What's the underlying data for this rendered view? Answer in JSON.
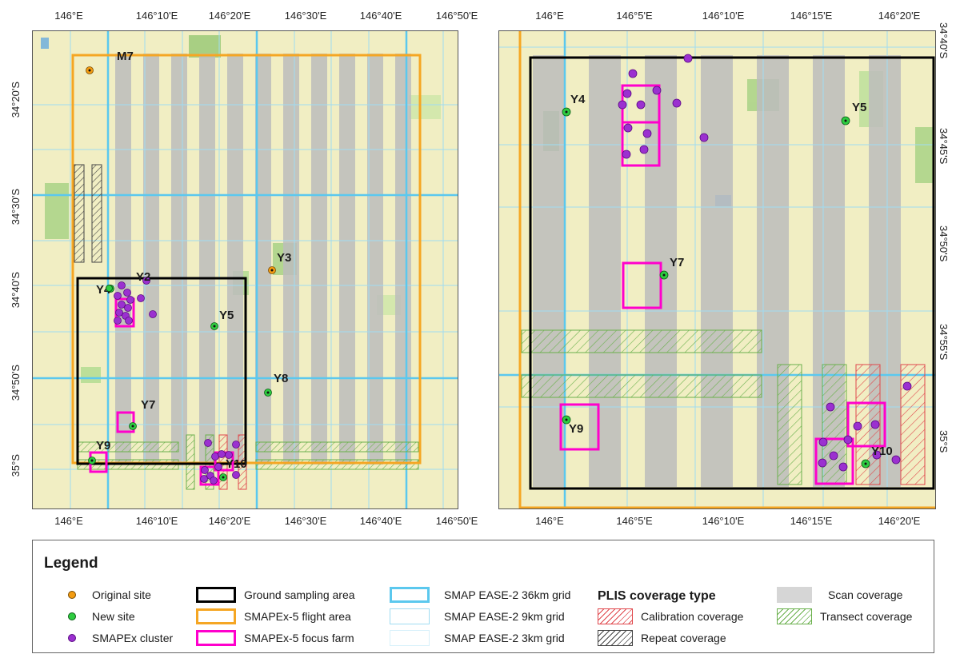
{
  "left_map": {
    "top_ticks": [
      "146°E",
      "146°10'E",
      "146°20'E",
      "146°30'E",
      "146°40'E",
      "146°50'E"
    ],
    "bottom_ticks": [
      "146°E",
      "146°10'E",
      "146°20'E",
      "146°30'E",
      "146°40'E",
      "146°50'E"
    ],
    "left_ticks": [
      "34°20'S",
      "34°30'S",
      "34°40'S",
      "34°50'S",
      "35°S"
    ],
    "sites": {
      "M7": "M7",
      "Y3": "Y3",
      "Y2": "Y2",
      "Y4": "Y4",
      "Y5": "Y5",
      "Y7": "Y7",
      "Y8": "Y8",
      "Y9": "Y9",
      "Y10": "Y10"
    }
  },
  "right_map": {
    "top_ticks": [
      "146°E",
      "146°5'E",
      "146°10'E",
      "146°15'E",
      "146°20'E"
    ],
    "bottom_ticks": [
      "146°E",
      "146°5'E",
      "146°10'E",
      "146°15'E",
      "146°20'E"
    ],
    "right_ticks": [
      "34°40'S",
      "34°45'S",
      "34°50'S",
      "34°55'S",
      "35°S"
    ],
    "sites": {
      "Y4": "Y4",
      "Y5": "Y5",
      "Y7": "Y7",
      "Y9": "Y9",
      "Y10": "Y10"
    }
  },
  "legend": {
    "title": "Legend",
    "original_site": "Original site",
    "new_site": "New site",
    "smapex_cluster": "SMAPEx cluster",
    "ground_sampling_area": "Ground sampling area",
    "flight_area": "SMAPEx-5 flight area",
    "focus_farm": "SMAPEx-5 focus farm",
    "grid_36km": "SMAP EASE-2 36km grid",
    "grid_9km": "SMAP EASE-2 9km grid",
    "grid_3km": "SMAP EASE-2 3km grid",
    "plis_heading": "PLIS coverage type",
    "calibration_coverage": "Calibration coverage",
    "repeat_coverage": "Repeat coverage",
    "scan_coverage": "Scan coverage",
    "transect_coverage": "Transect coverage"
  },
  "colors": {
    "original_site": "#f39c12",
    "new_site": "#2ecc40",
    "smapex_cluster": "#9b30d0",
    "ground_sampling_area": "#000000",
    "flight_area": "#f5a623",
    "focus_farm": "#ff00cc",
    "grid_36km": "#5bc8ee",
    "grid_9km": "#9fdcf2",
    "grid_3km": "#d8f1fa",
    "calibration": "#e0474c",
    "repeat": "#444444",
    "scan": "#bdbdbd",
    "transect": "#6ab04c"
  }
}
